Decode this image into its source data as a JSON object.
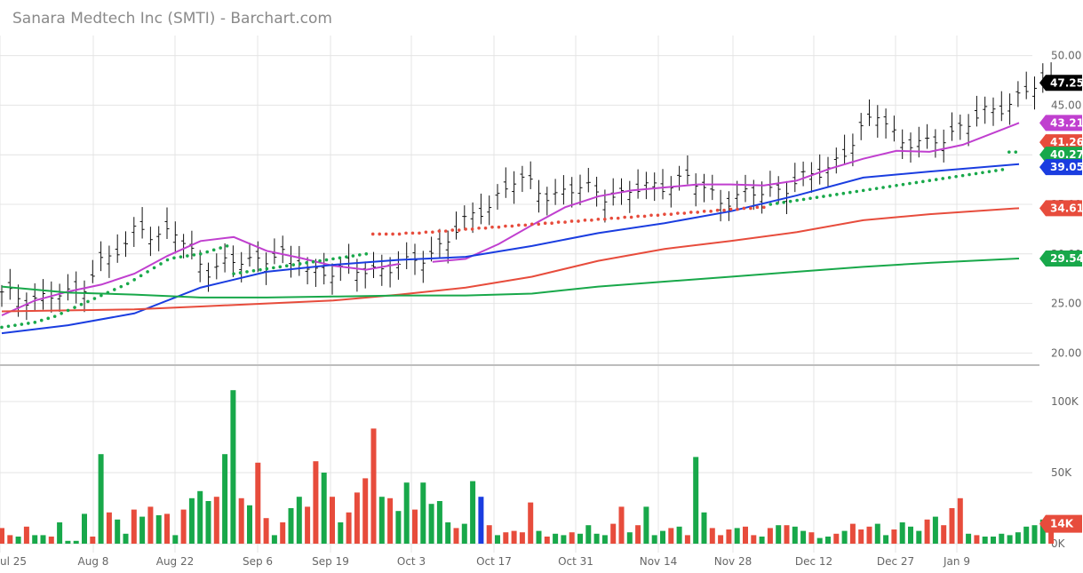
{
  "title": "Sanara Medtech Inc (SMTI) - Barchart.com",
  "chart_data": [
    {
      "type": "ohlc",
      "title": "Sanara Medtech Inc (SMTI) - Barchart.com",
      "x_tick_labels": [
        "ul 25",
        "Aug 8",
        "Aug 22",
        "Sep 6",
        "Sep 19",
        "Oct 3",
        "Oct 17",
        "Oct 31",
        "Nov 14",
        "Nov 28",
        "Dec 12",
        "Dec 27",
        "Jan 9"
      ],
      "y_tick_labels": [
        "50.00",
        "45.00",
        "40.00",
        "35.00",
        "30.00",
        "25.00",
        "20.00"
      ],
      "ylim": [
        19.5,
        50.5
      ],
      "grid": true,
      "last_close": 47.25,
      "price_badges": [
        {
          "label": "47.25",
          "value": 47.25,
          "color": "#000000"
        },
        {
          "label": "43.21",
          "value": 43.21,
          "color": "#c03fcf"
        },
        {
          "label": "41.26",
          "value": 41.26,
          "color": "#e74c3c"
        },
        {
          "label": "40.27",
          "value": 40.27,
          "color": "#18a84a"
        },
        {
          "label": "39.05",
          "value": 39.05,
          "color": "#1a3de0"
        },
        {
          "label": "34.61",
          "value": 34.61,
          "color": "#e74c3c"
        },
        {
          "label": "29.54",
          "value": 29.54,
          "color": "#18a84a"
        }
      ],
      "series": [
        {
          "style": "line",
          "color": "#c03fcf",
          "x": [
            0,
            10,
            20,
            30,
            40,
            50,
            60,
            70,
            80,
            90,
            100,
            110,
            120
          ],
          "y": [
            23.8,
            25.3,
            26.2,
            26.9,
            28.0,
            29.8,
            31.3,
            31.7,
            30.3,
            29.6,
            28.8,
            28.4,
            29.0
          ]
        },
        {
          "style": "line",
          "color": "#c03fcf",
          "x": [
            130,
            140,
            150,
            160,
            170,
            180,
            190,
            200,
            210,
            220,
            230,
            240,
            250,
            260,
            270,
            280,
            290,
            300,
            307
          ],
          "y": [
            29.2,
            29.5,
            31.0,
            32.9,
            34.7,
            35.8,
            36.4,
            36.7,
            37.0,
            37.0,
            36.9,
            37.4,
            38.6,
            39.6,
            40.4,
            40.3,
            41.0,
            42.3,
            43.21
          ]
        },
        {
          "style": "line",
          "color": "#1a3de0",
          "x": [
            0,
            20,
            40,
            60,
            80,
            100,
            120,
            140,
            160,
            180,
            200,
            220,
            240,
            260,
            280,
            307
          ],
          "y": [
            22.0,
            22.8,
            24.0,
            26.6,
            28.2,
            28.9,
            29.4,
            29.7,
            30.8,
            32.1,
            33.1,
            34.3,
            35.9,
            37.7,
            38.3,
            39.05
          ]
        },
        {
          "style": "line",
          "color": "#e74c3c",
          "x": [
            0,
            20,
            40,
            60,
            80,
            100,
            120,
            140,
            160,
            180,
            200,
            220,
            240,
            260,
            280,
            307
          ],
          "y": [
            24.2,
            24.3,
            24.4,
            24.7,
            25.0,
            25.3,
            25.9,
            26.6,
            27.7,
            29.3,
            30.5,
            31.3,
            32.2,
            33.4,
            34.0,
            34.61
          ]
        },
        {
          "style": "line",
          "color": "#18a84a",
          "x": [
            0,
            20,
            40,
            60,
            80,
            100,
            120,
            140,
            160,
            180,
            200,
            220,
            240,
            260,
            280,
            307
          ],
          "y": [
            26.7,
            26.1,
            25.9,
            25.6,
            25.6,
            25.7,
            25.8,
            25.8,
            26.0,
            26.7,
            27.2,
            27.7,
            28.2,
            28.7,
            29.1,
            29.54
          ]
        },
        {
          "style": "dots",
          "color": "#18a84a",
          "x": [
            0,
            2,
            4,
            6,
            8,
            10,
            12,
            14,
            16,
            18,
            20,
            22,
            24,
            26,
            28,
            30,
            32,
            34,
            36,
            38,
            40,
            42,
            44,
            46,
            48,
            50,
            52,
            54,
            56,
            58,
            60,
            62,
            64,
            66,
            68,
            70,
            72,
            74,
            76,
            78,
            80,
            82,
            84,
            86,
            88,
            90,
            92,
            94,
            96,
            98,
            100,
            102,
            104,
            106,
            108,
            110
          ],
          "y": [
            22.6,
            22.7,
            22.8,
            22.9,
            23.0,
            23.1,
            23.3,
            23.5,
            23.7,
            24.0,
            24.3,
            24.6,
            24.9,
            25.2,
            25.5,
            25.8,
            26.1,
            26.4,
            26.7,
            27.0,
            27.4,
            27.8,
            28.2,
            28.6,
            29.0,
            29.4,
            29.6,
            29.7,
            29.8,
            29.9,
            30.0,
            30.2,
            30.4,
            30.6,
            30.8,
            28.0,
            28.1,
            28.2,
            28.3,
            28.4,
            28.5,
            28.6,
            28.7,
            28.8,
            28.9,
            29.0,
            29.1,
            29.2,
            29.3,
            29.4,
            29.5,
            29.6,
            29.7,
            29.8,
            29.9,
            30.0
          ]
        },
        {
          "style": "dots",
          "color": "#e74c3c",
          "x": [
            112,
            114,
            116,
            118,
            120,
            122,
            124,
            126,
            128,
            130,
            132,
            134,
            136,
            138,
            140,
            142,
            144,
            146,
            148,
            150,
            152,
            154,
            156,
            158,
            160,
            162,
            164,
            166,
            168,
            170,
            172,
            174,
            176,
            178,
            180,
            182,
            184,
            186,
            188,
            190,
            192,
            194,
            196,
            198,
            200,
            202,
            204,
            206,
            208,
            210,
            212,
            214,
            216,
            218,
            220,
            222,
            224,
            226,
            228,
            230
          ],
          "y": [
            32.0,
            32.0,
            32.0,
            32.0,
            32.0,
            32.1,
            32.1,
            32.1,
            32.2,
            32.2,
            32.3,
            32.3,
            32.4,
            32.4,
            32.5,
            32.5,
            32.6,
            32.6,
            32.7,
            32.7,
            32.8,
            32.8,
            32.9,
            32.9,
            33.0,
            33.0,
            33.1,
            33.1,
            33.2,
            33.2,
            33.3,
            33.3,
            33.4,
            33.4,
            33.5,
            33.5,
            33.6,
            33.6,
            33.7,
            33.7,
            33.8,
            33.8,
            33.9,
            33.9,
            34.0,
            34.0,
            34.1,
            34.1,
            34.2,
            34.2,
            34.3,
            34.3,
            34.4,
            34.4,
            34.5,
            34.5,
            34.6,
            34.6,
            34.7,
            34.7
          ]
        },
        {
          "style": "dots",
          "color": "#18a84a",
          "x": [
            232,
            234,
            236,
            238,
            240,
            242,
            244,
            246,
            248,
            250,
            252,
            254,
            256,
            258,
            260,
            262,
            264,
            266,
            268,
            270,
            272,
            274,
            276,
            278,
            280,
            282,
            284,
            286,
            288,
            290,
            292,
            294,
            296,
            298,
            300,
            302,
            304,
            306
          ],
          "y": [
            35.0,
            35.1,
            35.2,
            35.3,
            35.4,
            35.5,
            35.6,
            35.7,
            35.8,
            35.9,
            36.0,
            36.1,
            36.2,
            36.3,
            36.4,
            36.5,
            36.6,
            36.7,
            36.8,
            36.9,
            37.0,
            37.1,
            37.2,
            37.3,
            37.4,
            37.5,
            37.6,
            37.7,
            37.8,
            37.9,
            38.0,
            38.1,
            38.2,
            38.3,
            38.4,
            38.5,
            40.27,
            40.27
          ]
        }
      ]
    },
    {
      "type": "bar",
      "title": "",
      "y_tick_labels": [
        "100K",
        "50K",
        "0K"
      ],
      "ylim": [
        0,
        120000
      ],
      "last_label": "14K",
      "last_value": 14000,
      "colors": {
        "up": "#18a84a",
        "down": "#e74c3c",
        "neutral": "#1a3de0"
      },
      "values": [
        11000,
        6000,
        5000,
        12000,
        6000,
        6000,
        5000,
        15000,
        2000,
        2000,
        21000,
        5000,
        63000,
        22000,
        17000,
        7000,
        24000,
        19000,
        26000,
        20000,
        21000,
        6000,
        24000,
        32000,
        37000,
        30000,
        33000,
        63000,
        108000,
        32000,
        27000,
        57000,
        18000,
        6000,
        15000,
        25000,
        33000,
        26000,
        58000,
        50000,
        33000,
        15000,
        22000,
        36000,
        46000,
        81000,
        33000,
        32000,
        23000,
        43000,
        24000,
        43000,
        28000,
        30000,
        15000,
        11000,
        14000,
        44000,
        33000,
        13000,
        6000,
        8000,
        9000,
        8000,
        29000,
        9000,
        5000,
        7000,
        6000,
        8000,
        7000,
        13000,
        7000,
        6000,
        14000,
        26000,
        8000,
        13000,
        26000,
        6000,
        9000,
        11000,
        12000,
        6000,
        61000,
        22000,
        11000,
        6000,
        10000,
        11000,
        12000,
        6000,
        5000,
        11000,
        13000,
        13000,
        12000,
        9000,
        8000,
        4000,
        5000,
        7000,
        9000,
        14000,
        10000,
        12000,
        14000,
        6000,
        10000,
        15000,
        12000,
        9000,
        17000,
        19000,
        13000,
        25000,
        32000,
        7000,
        6000,
        5000,
        5000,
        7000,
        6000,
        8000,
        12000,
        13000,
        17000,
        14000
      ],
      "directions": [
        "d",
        "d",
        "u",
        "d",
        "u",
        "u",
        "d",
        "u",
        "u",
        "u",
        "u",
        "d",
        "u",
        "d",
        "u",
        "u",
        "d",
        "u",
        "d",
        "u",
        "d",
        "u",
        "d",
        "u",
        "u",
        "u",
        "d",
        "u",
        "u",
        "d",
        "u",
        "d",
        "d",
        "u",
        "d",
        "u",
        "u",
        "d",
        "d",
        "u",
        "d",
        "u",
        "d",
        "d",
        "d",
        "d",
        "u",
        "d",
        "u",
        "u",
        "d",
        "u",
        "u",
        "u",
        "u",
        "d",
        "u",
        "u",
        "n",
        "d",
        "u",
        "d",
        "d",
        "d",
        "d",
        "u",
        "d",
        "u",
        "u",
        "d",
        "u",
        "u",
        "u",
        "u",
        "d",
        "d",
        "u",
        "d",
        "u",
        "u",
        "u",
        "d",
        "u",
        "d",
        "u",
        "u",
        "d",
        "d",
        "d",
        "u",
        "d",
        "d",
        "u",
        "d",
        "u",
        "d",
        "u",
        "u",
        "d",
        "u",
        "u",
        "d",
        "u",
        "d",
        "d",
        "d",
        "u",
        "u",
        "d",
        "u",
        "u",
        "u",
        "d",
        "u",
        "d",
        "d",
        "d",
        "u",
        "d",
        "u",
        "u",
        "u",
        "u",
        "u",
        "u",
        "u",
        "u",
        "d"
      ]
    }
  ]
}
